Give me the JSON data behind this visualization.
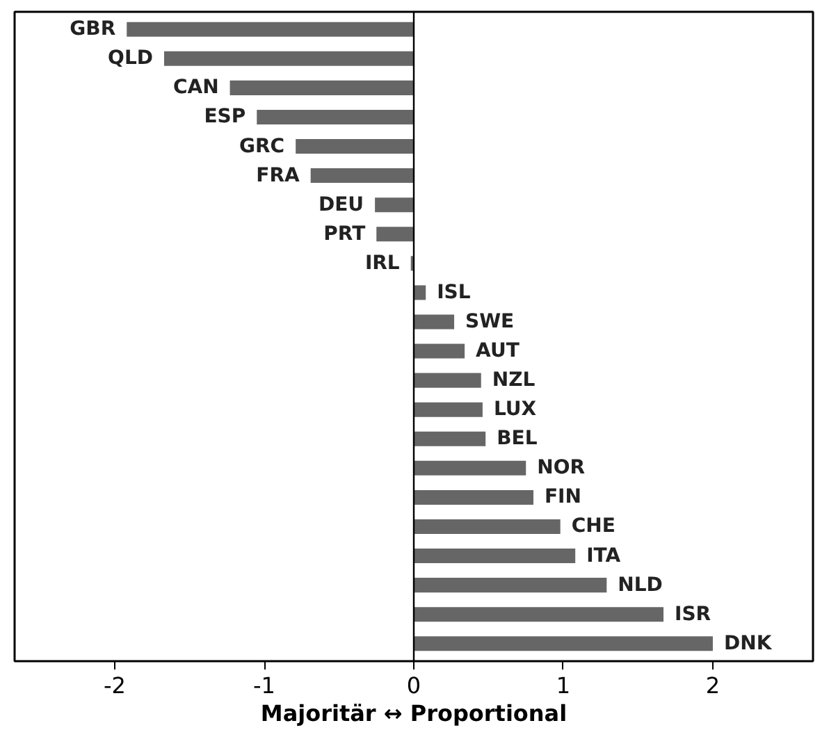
{
  "chart_data": {
    "type": "bar",
    "orientation": "horizontal",
    "xlabel": "Majoritär ↔ Proportional",
    "categories": [
      "GBR",
      "QLD",
      "CAN",
      "ESP",
      "GRC",
      "FRA",
      "DEU",
      "PRT",
      "IRL",
      "ISL",
      "SWE",
      "AUT",
      "NZL",
      "LUX",
      "BEL",
      "NOR",
      "FIN",
      "CHE",
      "ITA",
      "NLD",
      "ISR",
      "DNK"
    ],
    "values": [
      -1.92,
      -1.67,
      -1.23,
      -1.05,
      -0.79,
      -0.69,
      -0.26,
      -0.25,
      -0.02,
      0.08,
      0.27,
      0.34,
      0.45,
      0.46,
      0.48,
      0.75,
      0.8,
      0.98,
      1.08,
      1.29,
      1.67,
      2.0
    ],
    "color": "#666666",
    "xlim": [
      -2.67,
      2.67
    ],
    "xticks": [
      -2,
      -1,
      0,
      1,
      2
    ],
    "ref_lines": [
      {
        "axis": "x",
        "value": 0,
        "color": "#000000"
      }
    ],
    "grid": false
  }
}
